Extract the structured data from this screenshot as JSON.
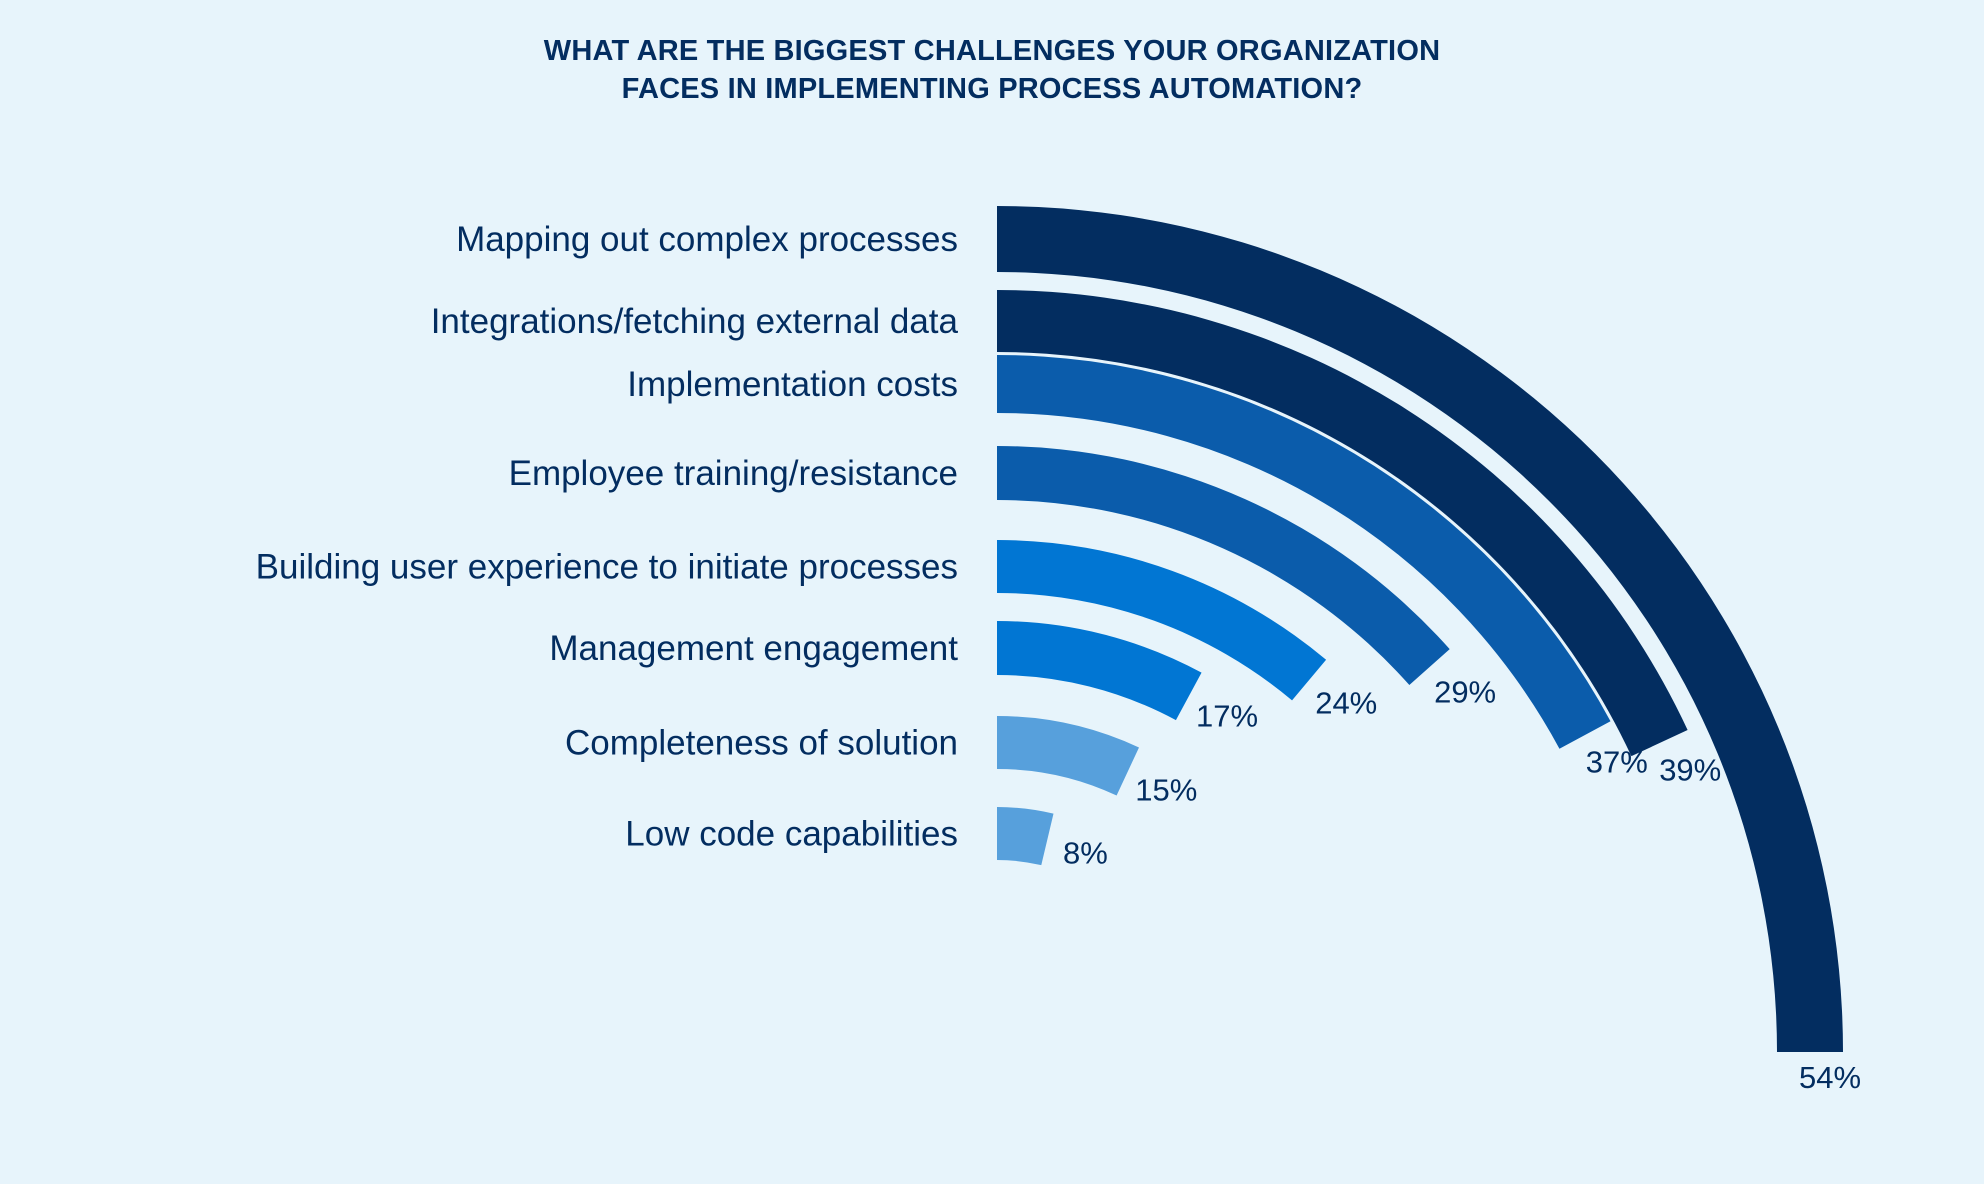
{
  "chart_data": {
    "type": "bar",
    "variant": "radial",
    "title_lines": [
      "WHAT ARE THE BIGGEST CHALLENGES YOUR ORGANIZATION",
      "FACES IN IMPLEMENTING PROCESS AUTOMATION?"
    ],
    "xlabel": "",
    "ylabel": "",
    "value_suffix": "%",
    "categories": [
      "Mapping out complex processes",
      "Integrations/fetching external data",
      "Implementation costs",
      "Employee training/resistance",
      "Building user experience to initiate processes",
      "Management engagement",
      "Completeness of solution",
      "Low code capabilities"
    ],
    "values": [
      54,
      39,
      37,
      29,
      24,
      17,
      15,
      8
    ],
    "value_labels": [
      "54%",
      "39%",
      "37%",
      "29%",
      "24%",
      "17%",
      "15%",
      "8%"
    ],
    "bar_colors": [
      "#032d60",
      "#032d60",
      "#0b5cab",
      "#0b5cab",
      "#0176d3",
      "#0176d3",
      "#57a0dc",
      "#57a0dc"
    ],
    "grid": false,
    "legend": "none"
  },
  "colors": {
    "background": "#e7f4fb",
    "text": "#032d60"
  }
}
